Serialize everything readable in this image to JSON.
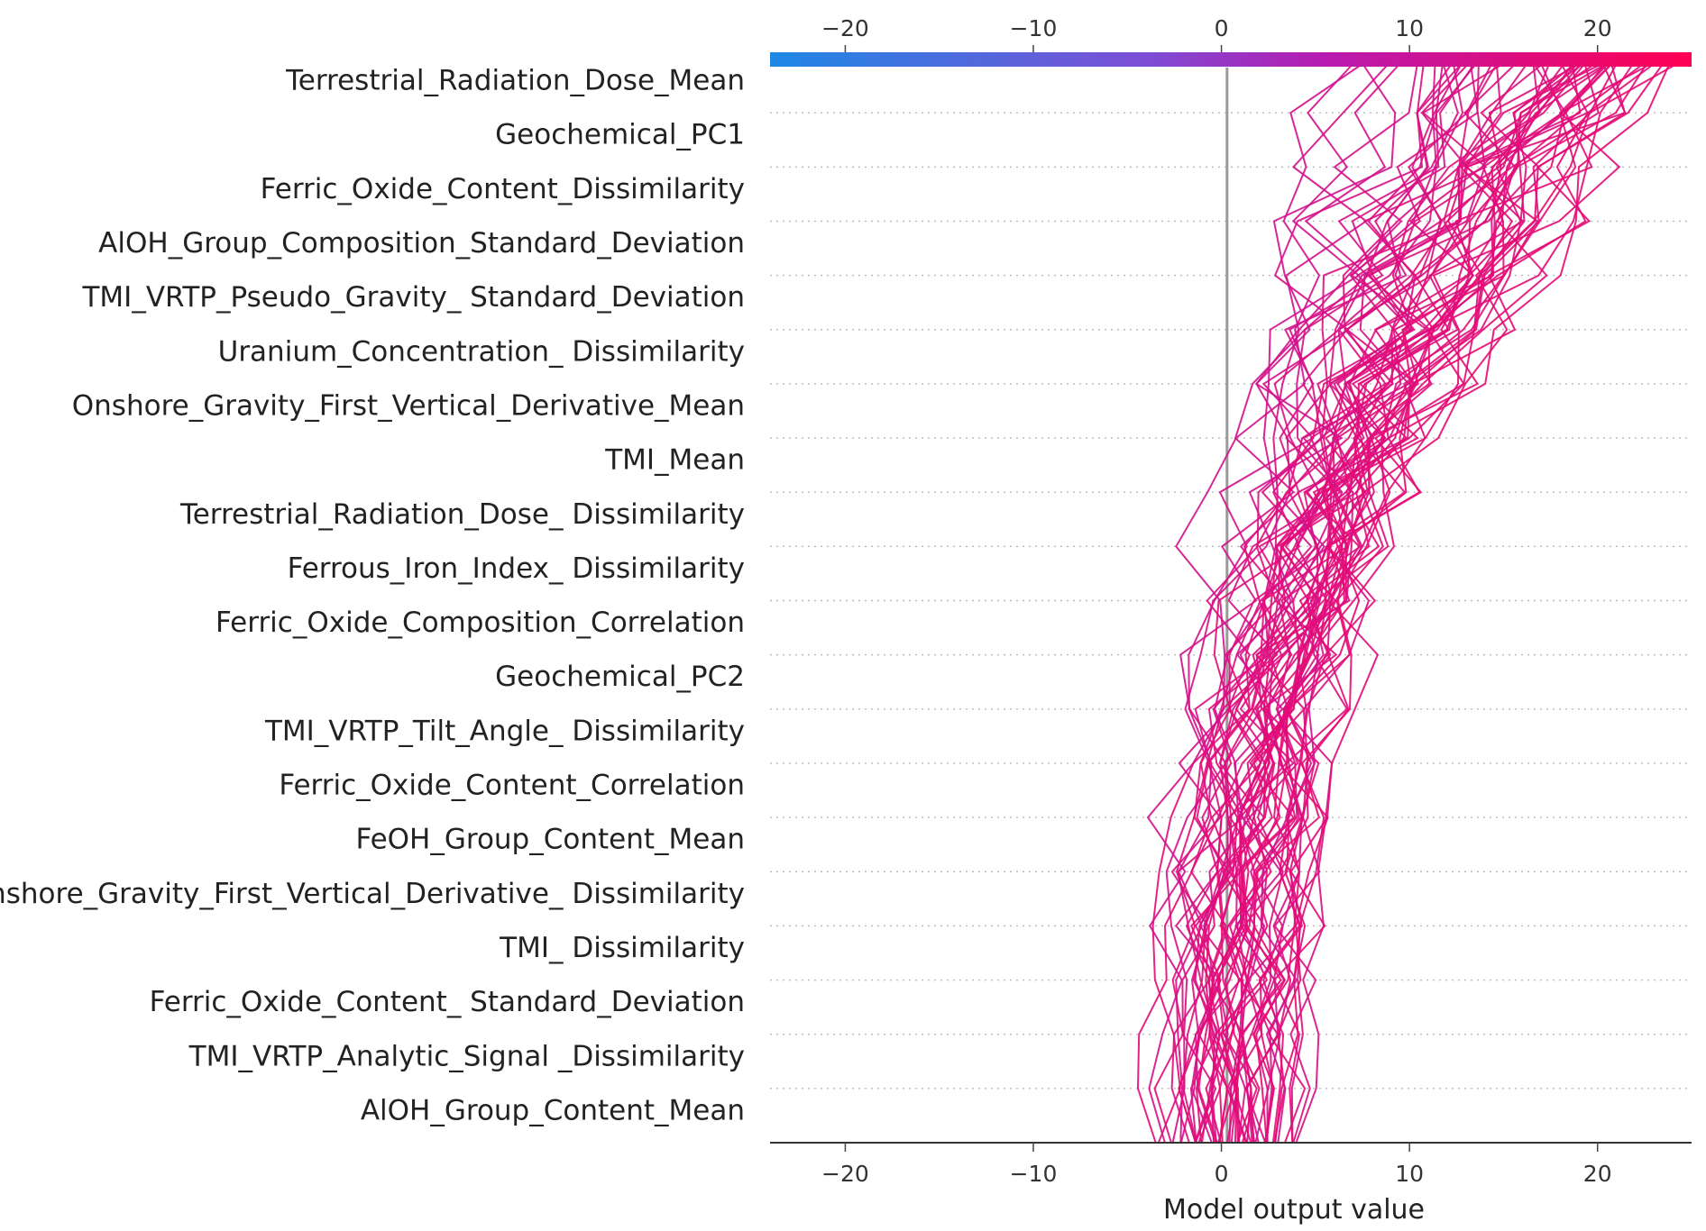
{
  "chart_data": {
    "type": "line",
    "subtype": "shap-decision-plot",
    "title": "",
    "xlabel": "Model output value",
    "xlim": [
      -24,
      25
    ],
    "xticks": [
      -20,
      -10,
      0,
      10,
      20
    ],
    "xtick_labels": [
      "−20",
      "−10",
      "0",
      "10",
      "20"
    ],
    "base_value": 0.3,
    "colorbar": {
      "range": [
        -24,
        25
      ],
      "colors": [
        "#1e88e5",
        "#7b4fd6",
        "#b71bb0",
        "#ff0052"
      ],
      "position": "top"
    },
    "features": [
      "Terrestrial_Radiation_Dose_Mean",
      "Geochemical_PC1",
      "Ferric_Oxide_Content_Dissimilarity",
      "AlOH_Group_Composition_Standard_Deviation",
      "TMI_VRTP_Pseudo_Gravity_ Standard_Deviation",
      "Uranium_Concentration_ Dissimilarity",
      "Onshore_Gravity_First_Vertical_Derivative_Mean",
      "TMI_Mean",
      "Terrestrial_Radiation_Dose_ Dissimilarity",
      "Ferrous_Iron_Index_ Dissimilarity",
      "Ferric_Oxide_Composition_Correlation",
      "Geochemical_PC2",
      "TMI_VRTP_Tilt_Angle_ Dissimilarity",
      "Ferric_Oxide_Content_Correlation",
      "FeOH_Group_Content_Mean",
      "Onshore_Gravity_First_Vertical_Derivative_ Dissimilarity",
      "TMI_ Dissimilarity",
      "Ferric_Oxide_Content_ Standard_Deviation",
      "TMI_VRTP_Analytic_Signal _Dissimilarity",
      "AlOH_Group_Content_Mean"
    ],
    "n_samples": 60,
    "final_output_range": [
      6,
      25
    ],
    "base_output_range": [
      -3.5,
      4
    ]
  }
}
